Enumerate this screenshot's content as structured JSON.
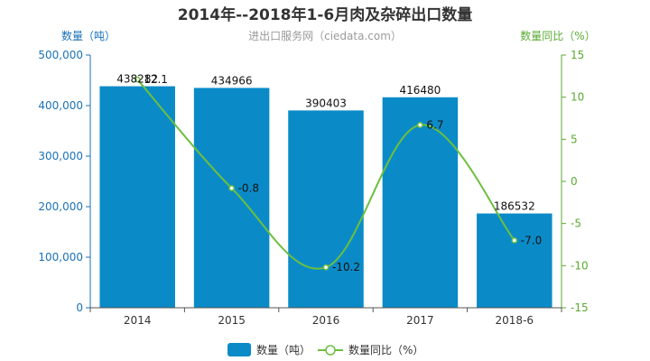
{
  "chart_data": {
    "type": "bar",
    "title": "2014年--2018年1-6月肉及杂碎出口数量",
    "subtitle": "进出口服务网（ciedata.com）",
    "categories": [
      "2014",
      "2015",
      "2016",
      "2017",
      "2018-6"
    ],
    "series": [
      {
        "name": "数量（吨）",
        "type": "bar",
        "axis": "left",
        "color": "#0a8bc8",
        "values": [
          438282,
          434966,
          390403,
          416480,
          186532
        ],
        "labels": [
          "438282",
          "434966",
          "390403",
          "416480",
          "186532"
        ]
      },
      {
        "name": "数量同比（%）",
        "type": "line",
        "axis": "right",
        "color": "#6cbf3f",
        "values": [
          12.1,
          -0.8,
          -10.2,
          6.7,
          -7.0
        ],
        "labels": [
          "12.1",
          "-0.8",
          "-10.2",
          "6.7",
          "-7.0"
        ]
      }
    ],
    "y_left": {
      "label": "数量（吨）",
      "min": 0,
      "max": 500000,
      "ticks": [
        0,
        100000,
        200000,
        300000,
        400000,
        500000
      ],
      "tick_labels": [
        "0",
        "100,000",
        "200,000",
        "300,000",
        "400,000",
        "500,000"
      ],
      "color": "#1a72b8"
    },
    "y_right": {
      "label": "数量同比（%）",
      "min": -15,
      "max": 15,
      "ticks": [
        15,
        10,
        5,
        0,
        -5,
        -10,
        -15
      ],
      "tick_labels": [
        "15",
        "10",
        "5",
        "0",
        "-5",
        "-10",
        "-15"
      ],
      "color": "#5aaa32"
    },
    "legend": {
      "position": "bottom",
      "items": [
        "数量（吨）",
        "数量同比（%）"
      ]
    },
    "grid": false
  }
}
